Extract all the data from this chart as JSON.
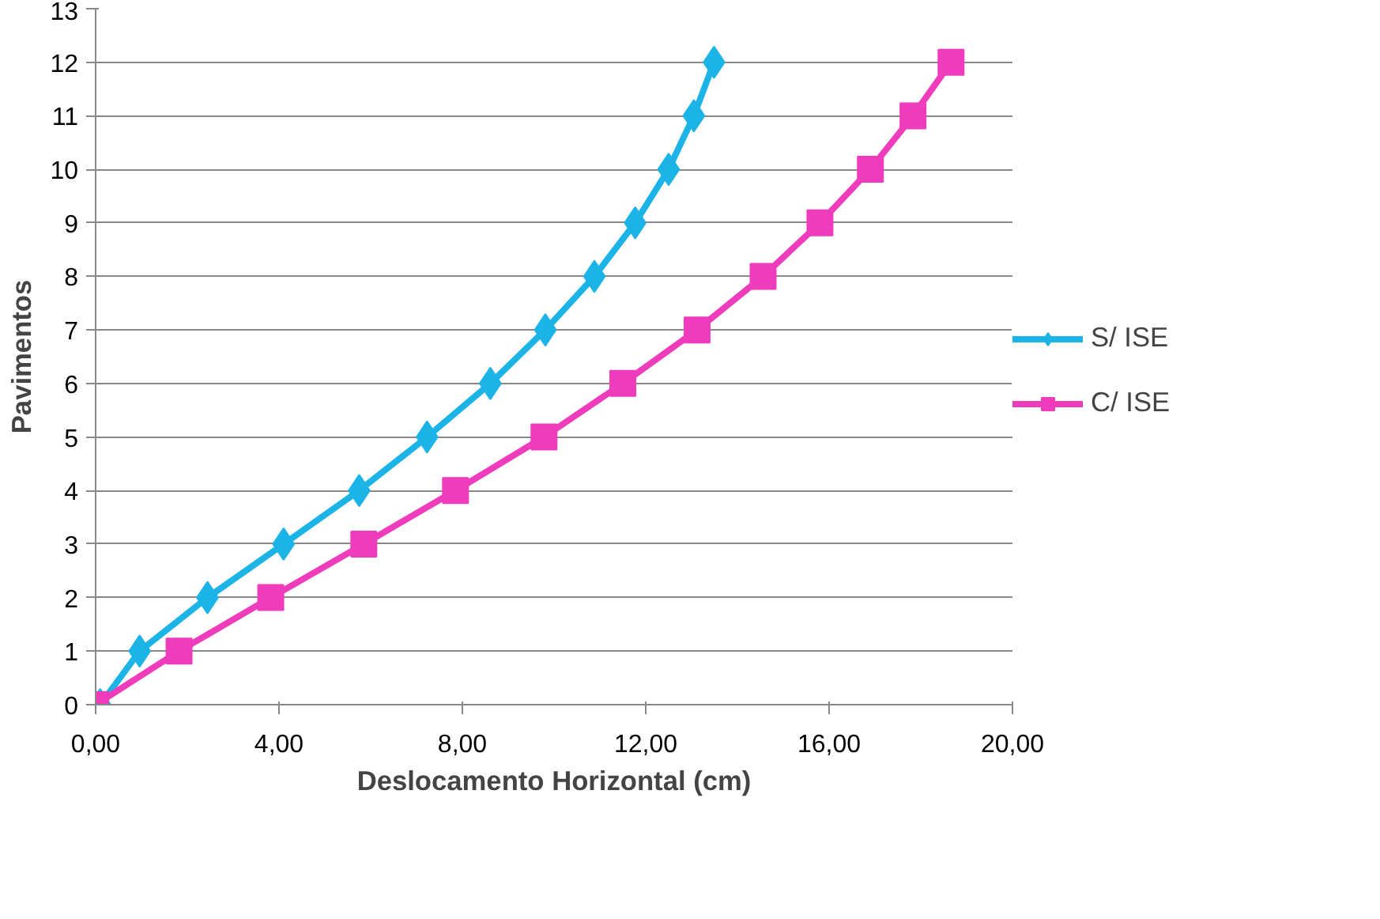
{
  "chart_data": {
    "type": "line",
    "xlabel": "Deslocamento Horizontal (cm)",
    "ylabel": "Pavimentos",
    "xlim": [
      0,
      20
    ],
    "xticks": [
      {
        "value": 0,
        "label": "0,00"
      },
      {
        "value": 4,
        "label": "4,00"
      },
      {
        "value": 8,
        "label": "8,00"
      },
      {
        "value": 12,
        "label": "12,00"
      },
      {
        "value": 16,
        "label": "16,00"
      },
      {
        "value": 20,
        "label": "20,00"
      }
    ],
    "ylim": [
      0,
      13
    ],
    "yticks": [
      0,
      1,
      2,
      3,
      4,
      5,
      6,
      7,
      8,
      9,
      10,
      11,
      12,
      13
    ],
    "grid": "y",
    "legend": "right",
    "line_style": "solid",
    "series": [
      {
        "name": "S/ ISE",
        "color": "#1cb4e6",
        "marker": "diamond",
        "x": [
          0.1,
          0.96,
          2.44,
          4.1,
          5.75,
          7.23,
          8.61,
          9.81,
          10.88,
          11.77,
          12.5,
          13.05,
          13.49
        ],
        "values": [
          0,
          1,
          2,
          3,
          4,
          5,
          6,
          7,
          8,
          9,
          10,
          11,
          12
        ]
      },
      {
        "name": "C/ ISE",
        "color": "#ee3cbc",
        "marker": "square",
        "x": [
          0.0,
          1.82,
          3.82,
          5.85,
          7.85,
          9.78,
          11.5,
          13.12,
          14.56,
          15.8,
          16.9,
          17.83,
          18.66
        ],
        "values": [
          0,
          1,
          2,
          3,
          4,
          5,
          6,
          7,
          8,
          9,
          10,
          11,
          12
        ]
      }
    ]
  }
}
